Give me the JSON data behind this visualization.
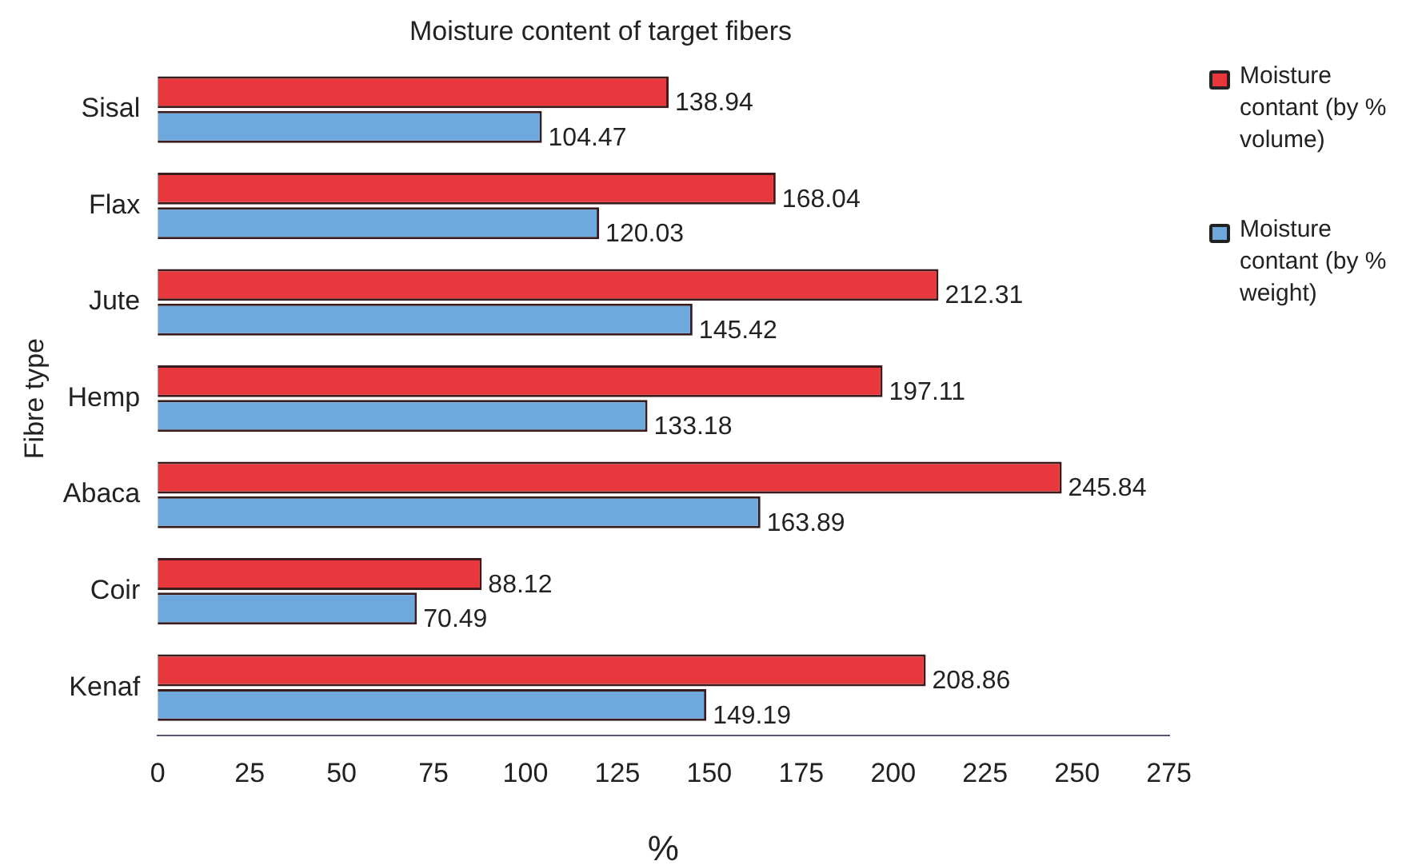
{
  "chart_data": {
    "type": "bar",
    "orientation": "horizontal",
    "title": "Moisture content of target fibers",
    "xlabel": "%",
    "ylabel": "Fibre type",
    "categories": [
      "Sisal",
      "Flax",
      "Jute",
      "Hemp",
      "Abaca",
      "Coir",
      "Kenaf"
    ],
    "series": [
      {
        "name": "Moisture contant (by % volume)",
        "color": "#e8383d",
        "values": [
          138.94,
          168.04,
          212.31,
          197.11,
          245.84,
          88.12,
          208.86
        ]
      },
      {
        "name": "Moisture contant (by % weight)",
        "color": "#6fa8dc",
        "values": [
          104.47,
          120.03,
          145.42,
          133.18,
          163.89,
          70.49,
          149.19
        ]
      }
    ],
    "xlim": [
      0,
      275
    ],
    "xticks": [
      0,
      25,
      50,
      75,
      100,
      125,
      150,
      175,
      200,
      225,
      250,
      275
    ],
    "grid": false,
    "legend": "top right",
    "data_labels": true
  }
}
